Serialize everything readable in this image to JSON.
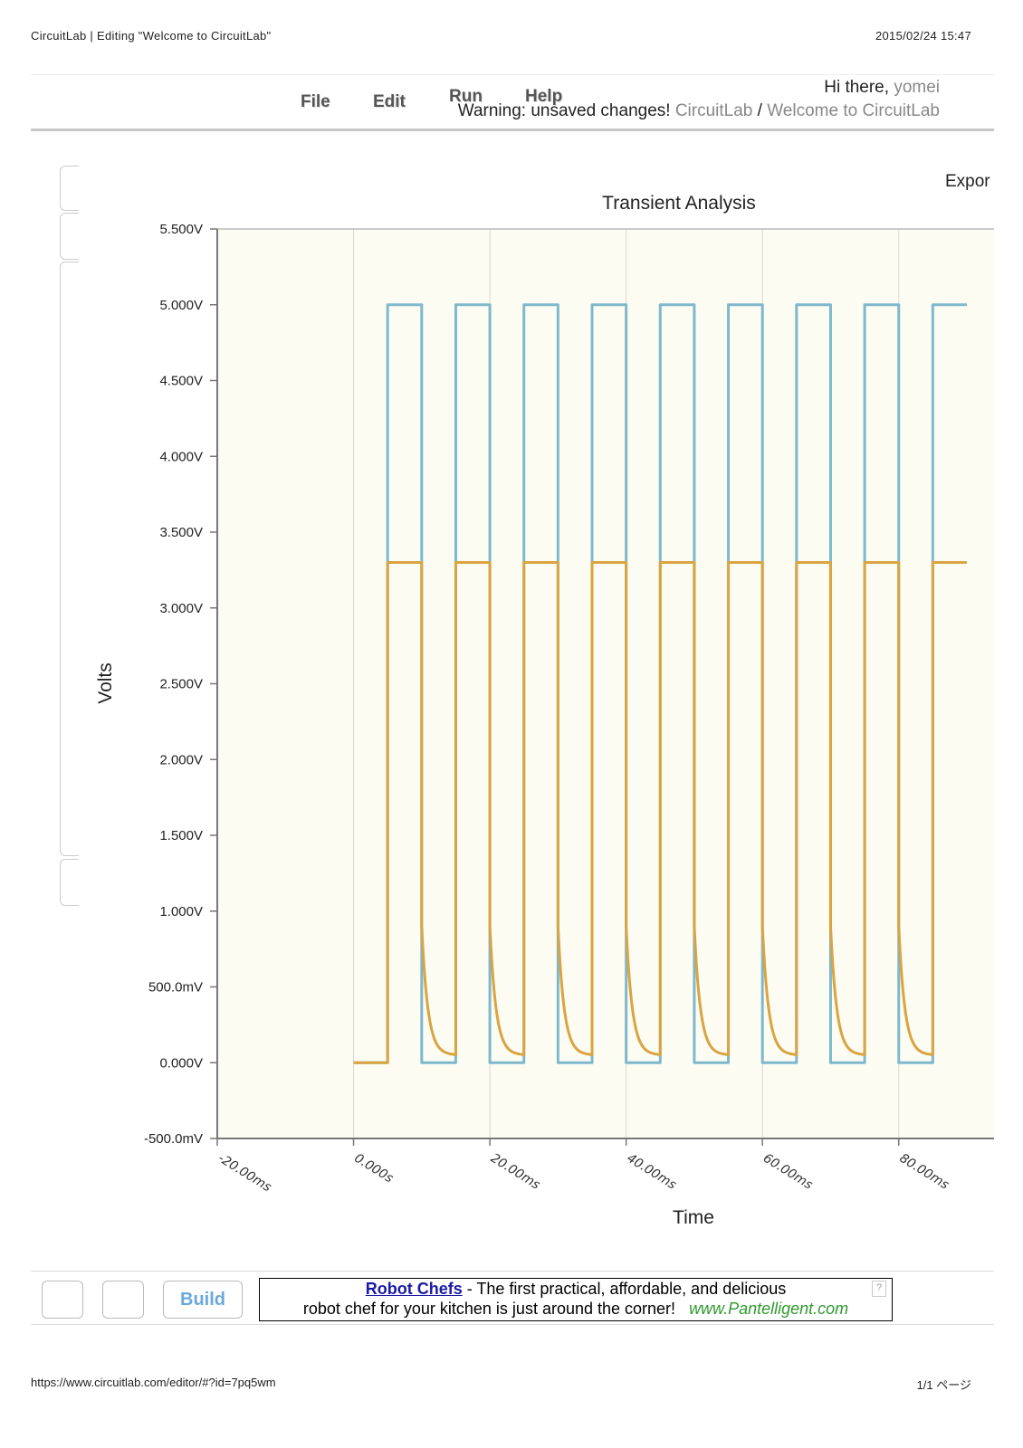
{
  "print_header": {
    "title": "CircuitLab | Editing \"Welcome to CircuitLab\"",
    "datetime": "2015/02/24 15:47"
  },
  "menu": {
    "file": "File",
    "edit": "Edit",
    "run": "Run",
    "help": "Help"
  },
  "account": {
    "greeting": "Hi there,",
    "username": "yomei",
    "warning": "Warning: unsaved changes!",
    "breadcrumb_root": "CircuitLab",
    "breadcrumb_sep": "/",
    "breadcrumb_doc": "Welcome to CircuitLab"
  },
  "export_label": "Expor",
  "chart_data": {
    "type": "line",
    "title": "Transient Analysis",
    "xlabel": "Time",
    "ylabel": "Volts",
    "x_unit": "ms",
    "xlim": [
      -20,
      90
    ],
    "ylim": [
      -0.5,
      5.5
    ],
    "y_ticks": [
      -0.5,
      0,
      0.5,
      1,
      1.5,
      2,
      2.5,
      3,
      3.5,
      4,
      4.5,
      5,
      5.5
    ],
    "y_tick_labels": [
      "-500.0mV",
      "0.000V",
      "500.0mV",
      "1.000V",
      "1.500V",
      "2.000V",
      "2.500V",
      "3.000V",
      "3.500V",
      "4.000V",
      "4.500V",
      "5.000V",
      "5.500V"
    ],
    "x_ticks": [
      -20,
      0,
      20,
      40,
      60,
      80
    ],
    "x_tick_labels": [
      "-20.00ms",
      "0.000s",
      "20.00ms",
      "40.00ms",
      "60.00ms",
      "80.00ms"
    ],
    "grid": true,
    "series": [
      {
        "color": "#7fb8cc",
        "kind": "square",
        "low": 0,
        "high": 5,
        "period_ms": 10,
        "high_ms": 5,
        "start_ms": 5,
        "pre_start_value": 0
      },
      {
        "color": "#d9a441",
        "kind": "clipped_decay",
        "low": 0,
        "high": 3.3,
        "period_ms": 10,
        "high_ms": 5,
        "start_ms": 5,
        "tail_end_value": 0.05,
        "tau_ms": 0.9,
        "pre_start_value": 0
      }
    ]
  },
  "bottom": {
    "build_label": "Build",
    "ad_title": "Robot Chefs",
    "ad_text_1": " - The first practical, affordable, and delicious",
    "ad_text_2": "robot chef for your kitchen is just around the corner!",
    "ad_url": "www.Pantelligent.com",
    "ad_help": "?"
  },
  "print_footer": {
    "url": "https://www.circuitlab.com/editor/#?id=7pq5wm",
    "page": "1/1 ページ"
  }
}
